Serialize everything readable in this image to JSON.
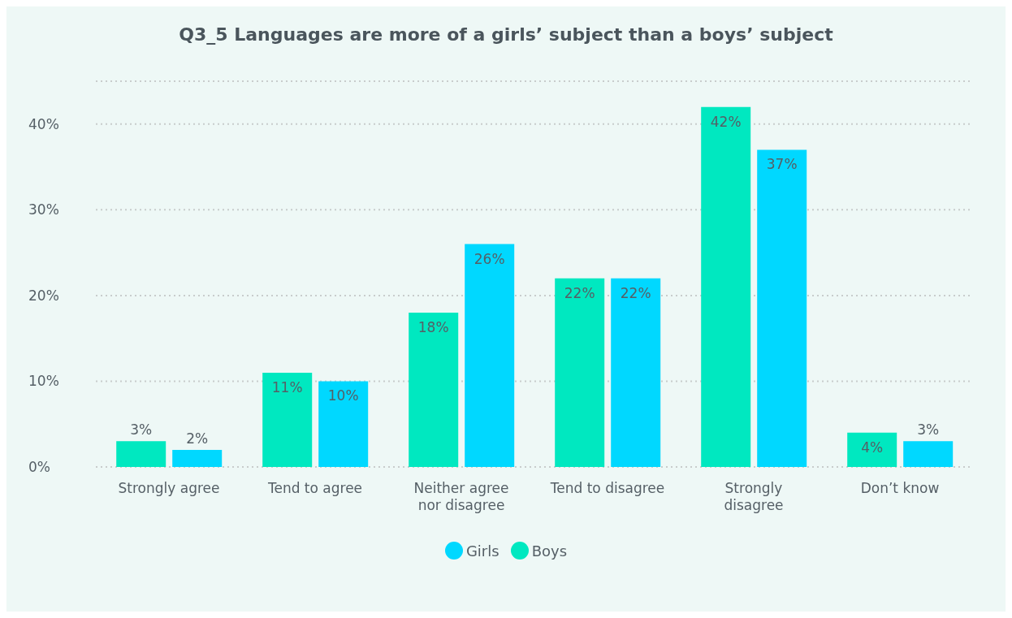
{
  "chart_data": {
    "type": "bar",
    "title": "Q3_5 Languages are more of a girls’ subject than a boys’ subject",
    "categories": [
      "Strongly agree",
      "Tend to agree",
      "Neither agree nor disagree",
      "Tend to disagree",
      "Strongly disagree",
      "Don’t know"
    ],
    "series": [
      {
        "name": "Boys",
        "color": "#00e8c0",
        "values": [
          3,
          11,
          18,
          22,
          42,
          4
        ],
        "value_labels": [
          "3%",
          "11%",
          "18%",
          "22%",
          "42%",
          "4%"
        ]
      },
      {
        "name": "Girls",
        "color": "#00d8ff",
        "values": [
          2,
          10,
          26,
          22,
          37,
          3
        ],
        "value_labels": [
          "2%",
          "10%",
          "26%",
          "22%",
          "37%",
          "3%"
        ]
      }
    ],
    "ylim": [
      0,
      45
    ],
    "yticks": [
      {
        "value": 0,
        "label": "0%"
      },
      {
        "value": 10,
        "label": "10%"
      },
      {
        "value": 20,
        "label": "20%"
      },
      {
        "value": 30,
        "label": "30%"
      },
      {
        "value": 40,
        "label": "40%"
      }
    ],
    "grid": "y",
    "legend": "bottom"
  }
}
